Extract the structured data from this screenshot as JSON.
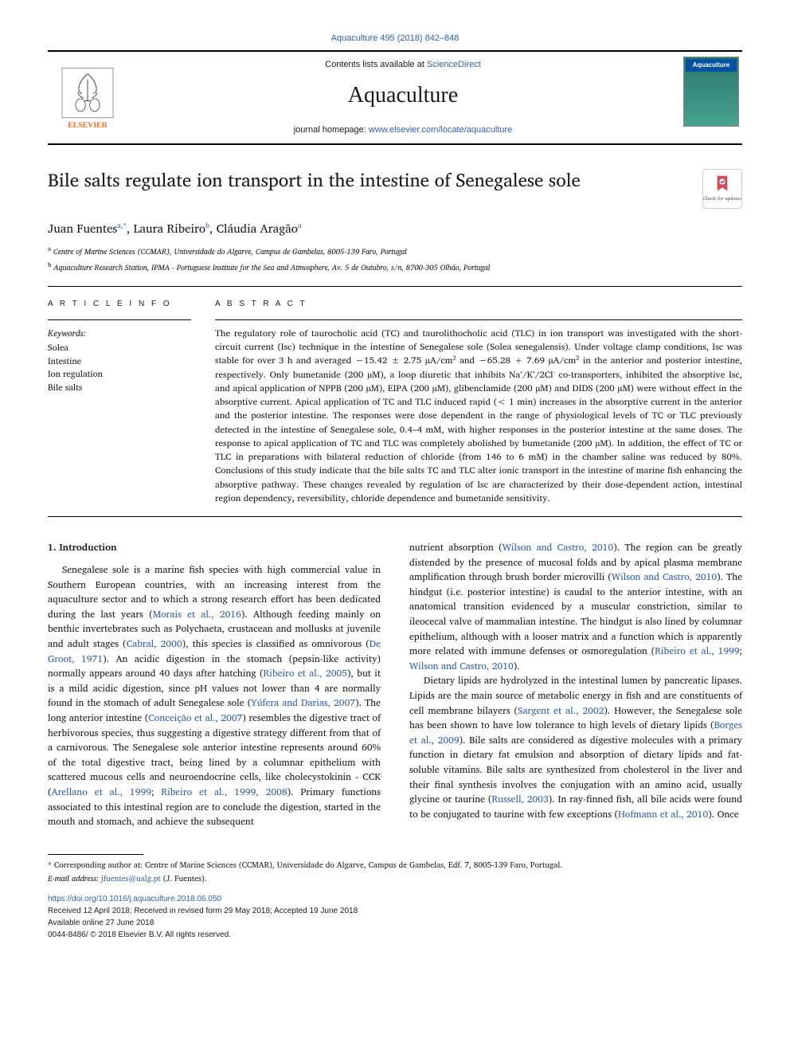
{
  "citation": {
    "text": "Aquaculture 495 (2018) 842–848"
  },
  "header": {
    "contents_prefix": "Contents lists available at ",
    "contents_link": "ScienceDirect",
    "journal": "Aquaculture",
    "homepage_prefix": "journal homepage: ",
    "homepage_link": "www.elsevier.com/locate/aquaculture",
    "cover_label": "Aquaculture"
  },
  "article": {
    "title": "Bile salts regulate ion transport in the intestine of Senegalese sole",
    "updates_text": "Check for updates",
    "authors_html": "Juan Fuentes|a,*|, Laura Ribeiro|b|, Cláudia Aragão|a|",
    "author_names": [
      "Juan Fuentes",
      "Laura Ribeiro",
      "Cláudia Aragão"
    ],
    "author_sups": [
      "a,*",
      "b",
      "a"
    ],
    "affiliations": [
      {
        "sup": "a",
        "text": "Centre of Marine Sciences (CCMAR), Universidade do Algarve, Campus de Gambelas, 8005-139 Faro, Portugal"
      },
      {
        "sup": "b",
        "text": "Aquaculture Research Station, IPMA - Portuguese Institute for the Sea and Atmosphere, Av. 5 de Outubro, s/n, 8700-305 Olhão, Portugal"
      }
    ]
  },
  "info": {
    "heading": "A R T I C L E  I N F O",
    "keywords_label": "Keywords:",
    "keywords": [
      "Solea",
      "Intestine",
      "Ion regulation",
      "Bile salts"
    ]
  },
  "abstract": {
    "heading": "A B S T R A C T",
    "text": "The regulatory role of taurocholic acid (TC) and taurolithocholic acid (TLC) in ion transport was investigated with the short-circuit current (Isc) technique in the intestine of Senegalese sole (Solea senegalensis). Under voltage clamp conditions, Isc was stable for over 3 h and averaged −15.42 ± 2.75 µA/cm² and −65.28 + 7.69 µA/cm² in the anterior and posterior intestine, respectively. Only bumetanide (200 µM), a loop diuretic that inhibits Na⁺/K⁺/2Cl⁻ co-transporters, inhibited the absorptive Isc, and apical application of NPPB (200 µM), EIPA (200 µM), glibenclamide (200 µM) and DIDS (200 µM) were without effect in the absorptive current. Apical application of TC and TLC induced rapid (< 1 min) increases in the absorptive current in the anterior and the posterior intestine. The responses were dose dependent in the range of physiological levels of TC or TLC previously detected in the intestine of Senegalese sole, 0.4–4 mM, with higher responses in the posterior intestine at the same doses. The response to apical application of TC and TLC was completely abolished by bumetanide (200 µM). In addition, the effect of TC or TLC in preparations with bilateral reduction of chloride (from 146 to 6 mM) in the chamber saline was reduced by 80%. Conclusions of this study indicate that the bile salts TC and TLC alter ionic transport in the intestine of marine fish enhancing the absorptive pathway. These changes revealed by regulation of Isc are characterized by their dose-dependent action, intestinal region dependency, reversibility, chloride dependence and bumetanide sensitivity."
  },
  "body": {
    "section_heading": "1. Introduction",
    "col1_segments": [
      {
        "t": "text",
        "v": "Senegalese sole is a marine fish species with high commercial value in Southern European countries, with an increasing interest from the aquaculture sector and to which a strong research effort has been dedicated during the last years ("
      },
      {
        "t": "cite",
        "v": "Morais et al., 2016"
      },
      {
        "t": "text",
        "v": "). Although feeding mainly on benthic invertebrates such as Polychaeta, crustacean and mollusks at juvenile and adult stages ("
      },
      {
        "t": "cite",
        "v": "Cabral, 2000"
      },
      {
        "t": "text",
        "v": "), this species is classified as omnivorous ("
      },
      {
        "t": "cite",
        "v": "De Groot, 1971"
      },
      {
        "t": "text",
        "v": "). An acidic digestion in the stomach (pepsin-like activity) normally appears around 40 days after hatching ("
      },
      {
        "t": "cite",
        "v": "Ribeiro et al., 2005"
      },
      {
        "t": "text",
        "v": "), but it is a mild acidic digestion, since pH values not lower than 4 are normally found in the stomach of adult Senegalese sole ("
      },
      {
        "t": "cite",
        "v": "Yúfera and Darias, 2007"
      },
      {
        "t": "text",
        "v": "). The long anterior intestine ("
      },
      {
        "t": "cite",
        "v": "Conceição et al., 2007"
      },
      {
        "t": "text",
        "v": ") resembles the digestive tract of herbivorous species, thus suggesting a digestive strategy different from that of a carnivorous. The Senegalese sole anterior intestine represents around 60% of the total digestive tract, being lined by a columnar epithelium with scattered mucous cells and neuroendocrine cells, like cholecystokinin - CCK ("
      },
      {
        "t": "cite",
        "v": "Arellano et al., 1999"
      },
      {
        "t": "text",
        "v": "; "
      },
      {
        "t": "cite",
        "v": "Ribeiro et al., 1999, 2008"
      },
      {
        "t": "text",
        "v": "). Primary functions associated to this intestinal region are to conclude the digestion, started in the mouth and stomach, and achieve the subsequent"
      }
    ],
    "col2_segments_p1": [
      {
        "t": "text",
        "v": "nutrient absorption ("
      },
      {
        "t": "cite",
        "v": "Wilson and Castro, 2010"
      },
      {
        "t": "text",
        "v": "). The region can be greatly distended by the presence of mucosal folds and by apical plasma membrane amplification through brush border microvilli ("
      },
      {
        "t": "cite",
        "v": "Wilson and Castro, 2010"
      },
      {
        "t": "text",
        "v": "). The hindgut (i.e. posterior intestine) is caudal to the anterior intestine, with an anatomical transition evidenced by a muscular constriction, similar to ileocecal valve of mammalian intestine. The hindgut is also lined by columnar epithelium, although with a looser matrix and a function which is apparently more related with immune defenses or osmoregulation ("
      },
      {
        "t": "cite",
        "v": "Ribeiro et al., 1999"
      },
      {
        "t": "text",
        "v": "; "
      },
      {
        "t": "cite",
        "v": "Wilson and Castro, 2010"
      },
      {
        "t": "text",
        "v": ")."
      }
    ],
    "col2_segments_p2": [
      {
        "t": "text",
        "v": "Dietary lipids are hydrolyzed in the intestinal lumen by pancreatic lipases. Lipids are the main source of metabolic energy in fish and are constituents of cell membrane bilayers ("
      },
      {
        "t": "cite",
        "v": "Sargent et al., 2002"
      },
      {
        "t": "text",
        "v": "). However, the Senegalese sole has been shown to have low tolerance to high levels of dietary lipids ("
      },
      {
        "t": "cite",
        "v": "Borges et al., 2009"
      },
      {
        "t": "text",
        "v": "). Bile salts are considered as digestive molecules with a primary function in dietary fat emulsion and absorption of dietary lipids and fat-soluble vitamins. Bile salts are synthesized from cholesterol in the liver and their final synthesis involves the conjugation with an amino acid, usually glycine or taurine ("
      },
      {
        "t": "cite",
        "v": "Russell, 2003"
      },
      {
        "t": "text",
        "v": "). In ray-finned fish, all bile acids were found to be conjugated to taurine with few exceptions ("
      },
      {
        "t": "cite",
        "v": "Hofmann et al., 2010"
      },
      {
        "t": "text",
        "v": "). Once"
      }
    ]
  },
  "footer": {
    "corr": "* Corresponding author at: Centre of Marine Sciences (CCMAR), Universidade do Algarve, Campus de Gambelas, Edf. 7, 8005-139 Faro, Portugal.",
    "email_label": "E-mail address: ",
    "email": "jfuentes@ualg.pt",
    "email_suffix": " (J. Fuentes).",
    "doi": "https://doi.org/10.1016/j.aquaculture.2018.06.050",
    "received": "Received 12 April 2018; Received in revised form 29 May 2018; Accepted 19 June 2018",
    "available": "Available online 27 June 2018",
    "copyright": "0044-8486/ © 2018 Elsevier B.V. All rights reserved."
  },
  "colors": {
    "link": "#3060b0",
    "rule": "#000000",
    "cover_bg_top": "#2e7a6e",
    "cover_title_bg": "#0050a0",
    "elsevier_orange": "#ed6b21"
  }
}
